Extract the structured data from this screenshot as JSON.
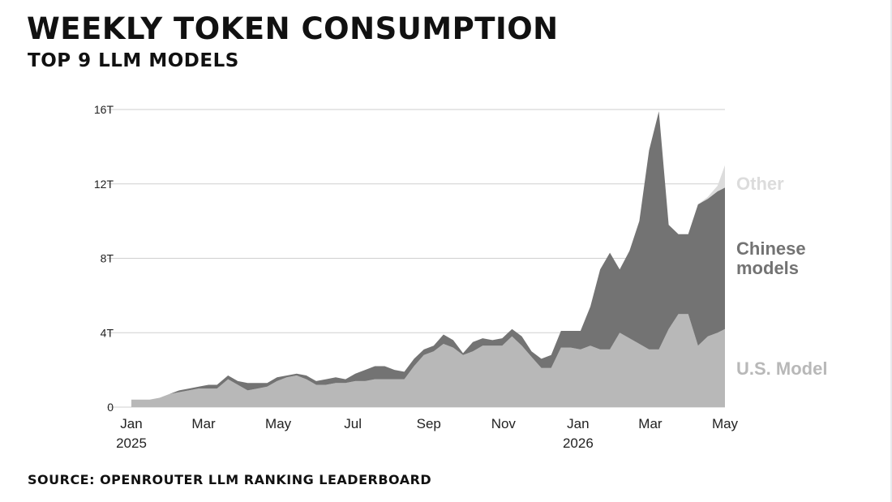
{
  "title": "WEEKLY TOKEN CONSUMPTION",
  "subtitle": "TOP 9 LLM MODELS",
  "source": "SOURCE: OPENROUTER LLM RANKING LEADERBOARD",
  "colors": {
    "us": "#b8b8b8",
    "chinese": "#737373",
    "other": "#dcdcdc",
    "grid": "#cfcfcf",
    "background": "#ffffff"
  },
  "chart_data": {
    "type": "area",
    "stacked": true,
    "y_unit": "T",
    "ylim": [
      0,
      16
    ],
    "yticks": [
      0,
      4,
      8,
      12,
      16
    ],
    "ytick_labels": [
      "0",
      "4T",
      "8T",
      "12T",
      "16T"
    ],
    "x_range": [
      "2025-01-01",
      "2026-05-01"
    ],
    "xticks": [
      {
        "date": "2025-01-01",
        "label": "Jan",
        "sublabel": "2025"
      },
      {
        "date": "2025-03-01",
        "label": "Mar",
        "sublabel": ""
      },
      {
        "date": "2025-05-01",
        "label": "May",
        "sublabel": ""
      },
      {
        "date": "2025-07-01",
        "label": "Jul",
        "sublabel": ""
      },
      {
        "date": "2025-09-01",
        "label": "Sep",
        "sublabel": ""
      },
      {
        "date": "2025-11-01",
        "label": "Nov",
        "sublabel": ""
      },
      {
        "date": "2026-01-01",
        "label": "Jan",
        "sublabel": "2026"
      },
      {
        "date": "2026-03-01",
        "label": "Mar",
        "sublabel": ""
      },
      {
        "date": "2026-05-01",
        "label": "May",
        "sublabel": ""
      }
    ],
    "grid": true,
    "legend": "right (direct labels)",
    "x": [
      "2025-01-01",
      "2025-01-08",
      "2025-01-16",
      "2025-01-24",
      "2025-02-01",
      "2025-02-09",
      "2025-02-17",
      "2025-02-25",
      "2025-03-05",
      "2025-03-12",
      "2025-03-21",
      "2025-03-29",
      "2025-04-06",
      "2025-04-14",
      "2025-04-22",
      "2025-04-30",
      "2025-05-08",
      "2025-05-16",
      "2025-05-24",
      "2025-06-01",
      "2025-06-09",
      "2025-06-17",
      "2025-06-25",
      "2025-07-03",
      "2025-07-11",
      "2025-07-19",
      "2025-07-27",
      "2025-08-04",
      "2025-08-12",
      "2025-08-20",
      "2025-08-28",
      "2025-09-05",
      "2025-09-13",
      "2025-09-21",
      "2025-09-29",
      "2025-10-07",
      "2025-10-15",
      "2025-10-23",
      "2025-10-31",
      "2025-11-08",
      "2025-11-16",
      "2025-11-24",
      "2025-12-02",
      "2025-12-10",
      "2025-12-18",
      "2025-12-26",
      "2026-01-03",
      "2026-01-11",
      "2026-01-19",
      "2026-01-27",
      "2026-02-04",
      "2026-02-12",
      "2026-02-20",
      "2026-02-28",
      "2026-03-08",
      "2026-03-16",
      "2026-03-24",
      "2026-04-01",
      "2026-04-09",
      "2026-04-17",
      "2026-04-25",
      "2026-05-01"
    ],
    "series": [
      {
        "name": "U.S. Model",
        "values": [
          0.4,
          0.4,
          0.4,
          0.5,
          0.7,
          0.8,
          0.9,
          1.0,
          1.0,
          1.0,
          1.5,
          1.2,
          0.9,
          1.0,
          1.1,
          1.4,
          1.6,
          1.7,
          1.5,
          1.2,
          1.2,
          1.3,
          1.3,
          1.4,
          1.4,
          1.5,
          1.5,
          1.5,
          1.5,
          2.2,
          2.8,
          3.0,
          3.4,
          3.2,
          2.8,
          3.0,
          3.3,
          3.3,
          3.3,
          3.8,
          3.3,
          2.7,
          2.1,
          2.1,
          3.2,
          3.2,
          3.1,
          3.3,
          3.1,
          3.1,
          4.0,
          3.7,
          3.4,
          3.1,
          3.1,
          4.2,
          5.0,
          5.0,
          3.3,
          3.8,
          4.0,
          4.2
        ]
      },
      {
        "name": "Chinese models",
        "values": [
          0,
          0,
          0,
          0,
          0,
          0.1,
          0.1,
          0.1,
          0.2,
          0.2,
          0.2,
          0.2,
          0.4,
          0.3,
          0.2,
          0.2,
          0.1,
          0.1,
          0.2,
          0.2,
          0.3,
          0.3,
          0.2,
          0.4,
          0.6,
          0.7,
          0.7,
          0.5,
          0.4,
          0.4,
          0.3,
          0.3,
          0.5,
          0.4,
          0.1,
          0.5,
          0.4,
          0.3,
          0.4,
          0.4,
          0.5,
          0.3,
          0.5,
          0.7,
          0.9,
          0.9,
          1.0,
          2.1,
          4.3,
          5.2,
          3.4,
          4.7,
          6.6,
          10.7,
          12.8,
          5.6,
          4.3,
          4.3,
          7.6,
          7.4,
          7.6,
          7.6
        ]
      },
      {
        "name": "Other",
        "values": [
          0,
          0,
          0,
          0,
          0,
          0,
          0,
          0,
          0,
          0,
          0,
          0,
          0,
          0,
          0,
          0,
          0,
          0,
          0,
          0,
          0,
          0,
          0,
          0,
          0,
          0,
          0,
          0,
          0,
          0,
          0,
          0,
          0,
          0,
          0,
          0,
          0,
          0,
          0,
          0,
          0,
          0,
          0,
          0,
          0,
          0,
          0,
          0,
          0,
          0,
          0,
          0,
          0,
          0,
          0,
          0,
          0,
          0,
          0,
          0.1,
          0.3,
          1.2
        ]
      }
    ]
  }
}
